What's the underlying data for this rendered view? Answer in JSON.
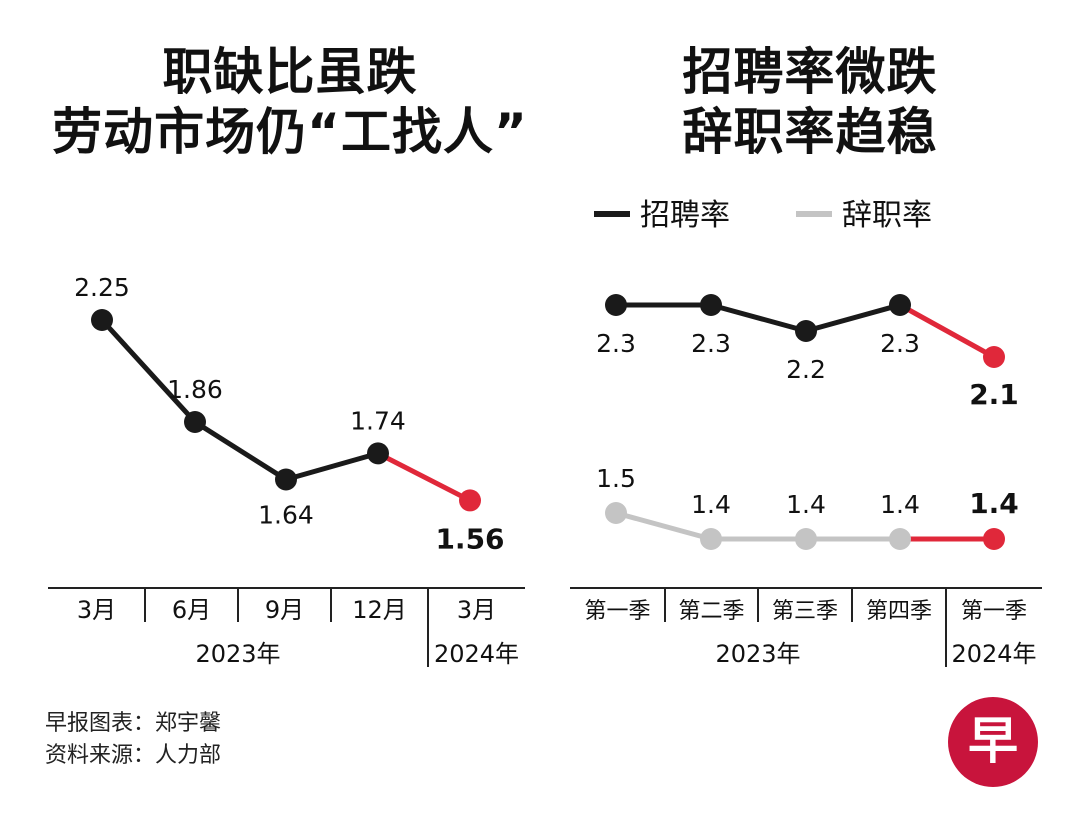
{
  "colors": {
    "black": "#1a1a1a",
    "grey": "#c4c4c4",
    "red": "#e0283a",
    "logo": "#c8143c"
  },
  "chart_data": [
    {
      "type": "line",
      "title": [
        "职缺比虽跌",
        "劳动市场仍“工找人”"
      ],
      "categories": [
        "3月",
        "6月",
        "9月",
        "12月",
        "3月"
      ],
      "year_groups": [
        {
          "label": "2023年",
          "span": 4
        },
        {
          "label": "2024年",
          "span": 1
        }
      ],
      "series": [
        {
          "values": [
            2.25,
            1.86,
            1.64,
            1.74,
            1.56
          ],
          "labels": [
            "2.25",
            "1.86",
            "1.64",
            "1.74",
            "1.56"
          ]
        }
      ],
      "highlight_last": true,
      "grid": false
    },
    {
      "type": "line",
      "title": [
        "招聘率微跌",
        "辞职率趋稳"
      ],
      "legend_position": "top",
      "categories": [
        "第一季",
        "第二季",
        "第三季",
        "第四季",
        "第一季"
      ],
      "year_groups": [
        {
          "label": "2023年",
          "span": 4
        },
        {
          "label": "2024年",
          "span": 1
        }
      ],
      "series": [
        {
          "name": "招聘率",
          "color": "#1a1a1a",
          "values": [
            2.3,
            2.3,
            2.2,
            2.3,
            2.1
          ],
          "labels": [
            "2.3",
            "2.3",
            "2.2",
            "2.3",
            "2.1"
          ]
        },
        {
          "name": "辞职率",
          "color": "#c4c4c4",
          "values": [
            1.5,
            1.4,
            1.4,
            1.4,
            1.4
          ],
          "labels": [
            "1.5",
            "1.4",
            "1.4",
            "1.4",
            "1.4"
          ]
        }
      ],
      "highlight_last": true,
      "grid": false
    }
  ],
  "footer": {
    "credit": "早报图表：郑宇馨",
    "source": "资料来源：人力部"
  },
  "logo": {
    "text": "早"
  }
}
